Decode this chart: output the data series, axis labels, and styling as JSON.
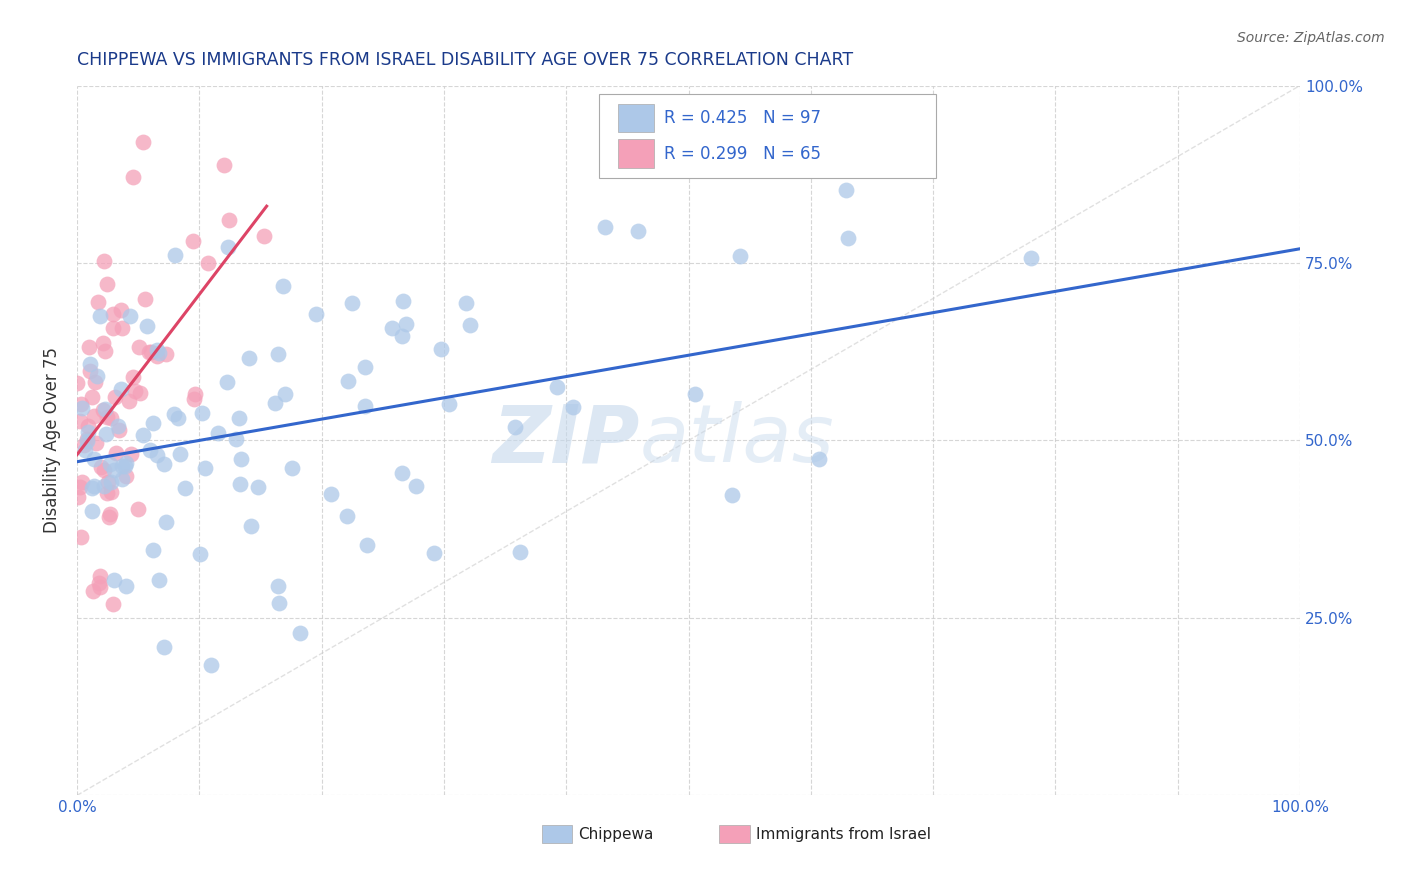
{
  "title": "CHIPPEWA VS IMMIGRANTS FROM ISRAEL DISABILITY AGE OVER 75 CORRELATION CHART",
  "source": "Source: ZipAtlas.com",
  "ylabel": "Disability Age Over 75",
  "xlim": [
    0.0,
    1.0
  ],
  "ylim": [
    0.0,
    1.0
  ],
  "chippewa_R": 0.425,
  "chippewa_N": 97,
  "israel_R": 0.299,
  "israel_N": 65,
  "chippewa_color": "#adc8e8",
  "israel_color": "#f4a0b8",
  "chippewa_line_color": "#3366cc",
  "israel_line_color": "#dd4466",
  "legend_label_1": "Chippewa",
  "legend_label_2": "Immigrants from Israel",
  "watermark_zip": "ZIP",
  "watermark_atlas": "atlas",
  "background_color": "#ffffff",
  "grid_color": "#cccccc",
  "title_color": "#1a3a8a",
  "axis_label_color": "#333333",
  "tick_label_color": "#3366cc",
  "source_color": "#666666"
}
